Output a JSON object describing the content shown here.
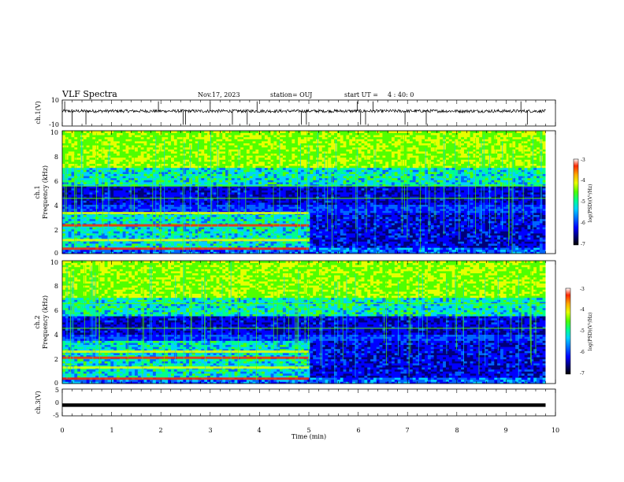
{
  "header": {
    "title": "VLF Spectra",
    "date": "Nov.17, 2023",
    "station": "station= OUJ",
    "start_label": "start UT =",
    "start_time": "4 : 40: 0"
  },
  "chart_data": [
    {
      "name": "ch1-waveform",
      "type": "line",
      "ylabel": "ch.1(V)",
      "ylim": [
        -10,
        10
      ],
      "y_ticks": [
        "10",
        "-10"
      ],
      "xlim": [
        0,
        10
      ],
      "baseline": 1.5,
      "noise_amplitude": 1.2,
      "spike_times": [
        0.05,
        0.2,
        0.48,
        1.95,
        2.45,
        2.5,
        3.0,
        3.45,
        3.75,
        3.95,
        4.85,
        4.95,
        5.98,
        6.05,
        6.15,
        6.3,
        6.95,
        7.38,
        9.3,
        9.43
      ],
      "color": "#000000"
    },
    {
      "name": "ch1-spectrogram",
      "type": "heatmap",
      "ylabel": "ch.1",
      "ylabel2": "Frequency (kHz)",
      "xlim": [
        0,
        10
      ],
      "ylim": [
        0,
        10
      ],
      "y_ticks": [
        "0",
        "2",
        "4",
        "6",
        "8",
        "10"
      ],
      "colorbar": {
        "min": -7,
        "max": -3,
        "ticks": [
          "-3",
          "-4",
          "-5",
          "-6",
          "-7"
        ],
        "label": "log(PSD)(V²/Hz)"
      },
      "change_time": 5.0,
      "low_band_top_khz": 3.4,
      "bright_lines_khz": [
        0.4,
        1.1,
        2.3,
        3.3
      ],
      "tone_lines_khz": [
        4.5,
        5.5
      ]
    },
    {
      "name": "ch2-spectrogram",
      "type": "heatmap",
      "ylabel": "ch.2",
      "ylabel2": "Frequency (kHz)",
      "xlim": [
        0,
        10
      ],
      "ylim": [
        0,
        10
      ],
      "y_ticks": [
        "0",
        "2",
        "4",
        "6",
        "8",
        "10"
      ],
      "colorbar": {
        "min": -7,
        "max": -3,
        "ticks": [
          "-3",
          "-4",
          "-5",
          "-6",
          "-7"
        ],
        "label": "log(PSD)(V²/Hz)"
      },
      "change_time": 5.0,
      "low_band_top_khz": 3.5,
      "bright_lines_khz": [
        0.4,
        1.3,
        2.1,
        2.6
      ],
      "tone_lines_khz": [
        4.5,
        6.5
      ]
    },
    {
      "name": "ch3-waveform",
      "type": "line",
      "ylabel": "ch.3(V)",
      "ylim": [
        -5,
        5
      ],
      "y_ticks": [
        "5",
        "0",
        "-5"
      ],
      "xlim": [
        0,
        10
      ],
      "baseline": -1.0,
      "noise_amplitude": 0.3,
      "color": "#000000"
    }
  ],
  "xaxis": {
    "label": "Time (min)",
    "ticks": [
      "0",
      "1",
      "2",
      "3",
      "4",
      "5",
      "6",
      "7",
      "8",
      "9",
      "10"
    ],
    "data_end": 9.8
  },
  "colormap": [
    "#000000",
    "#00007a",
    "#0000ff",
    "#0064ff",
    "#00d2ff",
    "#00ff8c",
    "#50ff00",
    "#e6ff00",
    "#ffaa00",
    "#ff2800",
    "#ffffff"
  ]
}
